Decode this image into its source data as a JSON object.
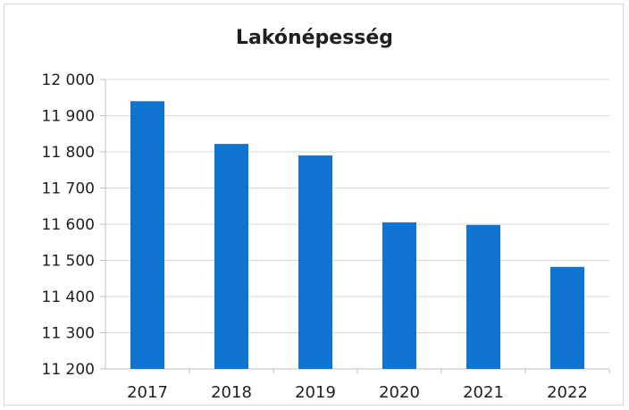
{
  "chart_data": {
    "type": "bar",
    "title": "Lakónépesség",
    "categories": [
      "2017",
      "2018",
      "2019",
      "2020",
      "2021",
      "2022"
    ],
    "values": [
      11940,
      11822,
      11790,
      11605,
      11598,
      11482
    ],
    "ylim": [
      11200,
      12000
    ],
    "yticks": [
      11200,
      11300,
      11400,
      11500,
      11600,
      11700,
      11800,
      11900,
      12000
    ],
    "ytick_labels": [
      "11 200",
      "11 300",
      "11 400",
      "11 500",
      "11 600",
      "11 700",
      "11 800",
      "11 900",
      "12 000"
    ],
    "grid": true,
    "legend": false,
    "colors": {
      "bar": "#0f73d2",
      "grid": "#d9d9d9",
      "axis": "#bfbfbf"
    }
  }
}
